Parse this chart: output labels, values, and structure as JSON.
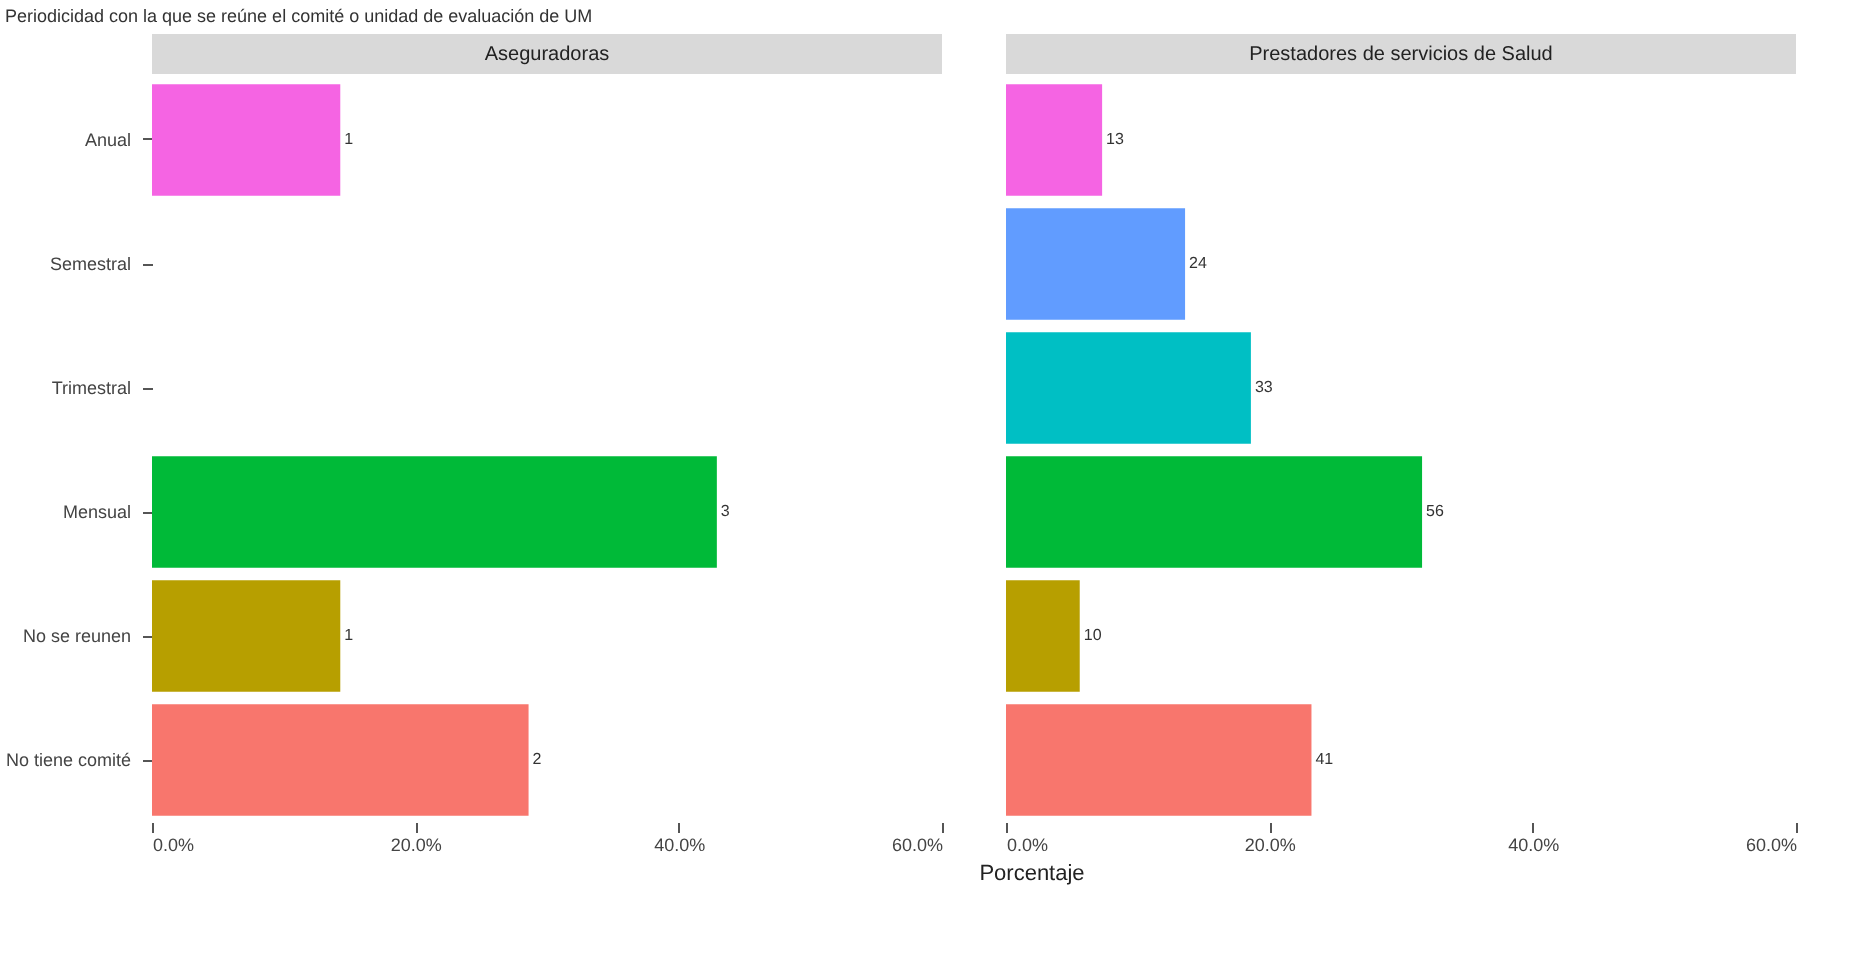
{
  "chart_data": [
    {
      "type": "bar",
      "orientation": "horizontal",
      "title": "Periodicidad con la que se reúne el comité o unidad de evaluación de UM",
      "subtitle": "Aseguradoras",
      "xlabel": "Porcentaje",
      "categories": [
        "Anual",
        "Semestral",
        "Trimestral",
        "Mensual",
        "No se reunen",
        "No tiene comité"
      ],
      "values": [
        14.3,
        null,
        null,
        42.9,
        14.3,
        28.6
      ],
      "colors": [
        "#f564e3",
        "#619cff",
        "#00bfc4",
        "#00ba38",
        "#b79f00",
        "#f8766d"
      ],
      "annotations": [
        {
          "text": "1",
          "x": 14.3,
          "y": "Anual"
        },
        {
          "text": "3",
          "x": 42.9,
          "y": "Mensual"
        },
        {
          "text": "1",
          "x": 14.3,
          "y": "No se reunen"
        },
        {
          "text": "2",
          "x": 28.6,
          "y": "No tiene comité"
        }
      ],
      "xlim": [
        0,
        60
      ],
      "xticks": [
        {
          "value": 0,
          "label": "0.0%"
        },
        {
          "value": 20,
          "label": "20.0%"
        },
        {
          "value": 40,
          "label": "40.0%"
        },
        {
          "value": 60,
          "label": "60.0%"
        }
      ],
      "grid": false
    },
    {
      "type": "bar",
      "orientation": "horizontal",
      "subtitle": "Prestadores de servicios de Salud",
      "categories": [
        "Anual",
        "Semestral",
        "Trimestral",
        "Mensual",
        "No se reunen",
        "No tiene comité"
      ],
      "values": [
        7.3,
        13.6,
        18.6,
        31.6,
        5.6,
        23.2
      ],
      "colors": [
        "#f564e3",
        "#619cff",
        "#00bfc4",
        "#00ba38",
        "#b79f00",
        "#f8766d"
      ],
      "annotations": [
        {
          "text": "13",
          "x": 7.3,
          "y": "Anual"
        },
        {
          "text": "24",
          "x": 13.6,
          "y": "Semestral"
        },
        {
          "text": "33",
          "x": 18.6,
          "y": "Trimestral"
        },
        {
          "text": "56",
          "x": 31.6,
          "y": "Mensual"
        },
        {
          "text": "10",
          "x": 5.6,
          "y": "No se reunen"
        },
        {
          "text": "41",
          "x": 23.2,
          "y": "No tiene comité"
        }
      ],
      "xlim": [
        0,
        60
      ],
      "xticks": [
        {
          "value": 0,
          "label": "0.0%"
        },
        {
          "value": 20,
          "label": "20.0%"
        },
        {
          "value": 40,
          "label": "40.0%"
        },
        {
          "value": 60,
          "label": "60.0%"
        }
      ],
      "grid": false,
      "tick_labels": "x"
    }
  ]
}
